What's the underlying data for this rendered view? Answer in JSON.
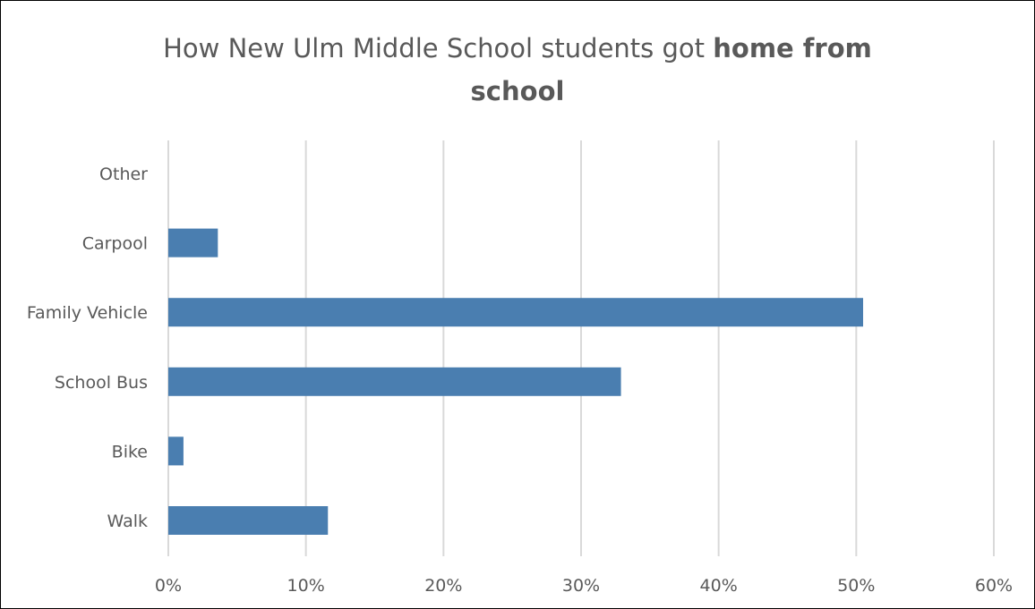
{
  "chart_data": {
    "type": "bar",
    "orientation": "horizontal",
    "title": {
      "plain": "How New Ulm Middle School students got ",
      "bold_line1": "home from",
      "bold_line2": "school"
    },
    "categories": [
      "Other",
      "Carpool",
      "Family Vehicle",
      "School Bus",
      "Bike",
      "Walk"
    ],
    "values": [
      0,
      3.6,
      50.5,
      32.9,
      1.1,
      11.6
    ],
    "xlim": [
      0,
      60
    ],
    "x_ticks": [
      0,
      10,
      20,
      30,
      40,
      50,
      60
    ],
    "x_tick_labels": [
      "0%",
      "10%",
      "20%",
      "30%",
      "40%",
      "50%",
      "60%"
    ],
    "grid": "vertical",
    "legend": "none",
    "bar_color": "#4a7eb0",
    "grid_color": "#d9d9d9",
    "text_color": "#595959"
  }
}
